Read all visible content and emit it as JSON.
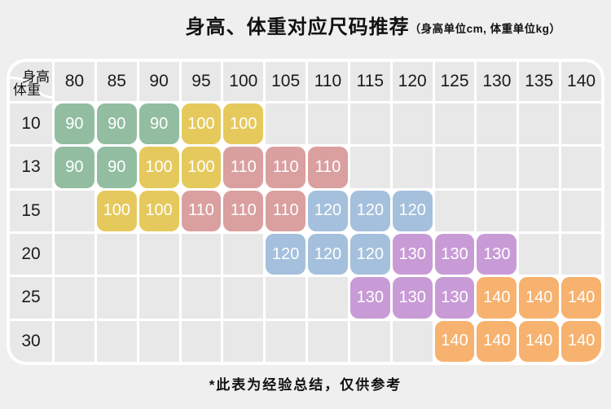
{
  "page": {
    "title": "身高、体重对应尺码推荐",
    "title_note": "（身高单位cm, 体重单位kg）",
    "footnote": "*此表为经验总结，仅供参考"
  },
  "chart_data": {
    "type": "table",
    "title": "身高、体重对应尺码推荐",
    "unit_note": "身高单位cm, 体重单位kg",
    "corner": {
      "top_right": "身高",
      "bottom_left": "体重"
    },
    "height_columns_cm": [
      "80",
      "85",
      "90",
      "95",
      "100",
      "105",
      "110",
      "115",
      "120",
      "125",
      "130",
      "135",
      "140"
    ],
    "rows": [
      {
        "weight_kg": "10",
        "sizes": [
          "90",
          "90",
          "90",
          "100",
          "100",
          "",
          "",
          "",
          "",
          "",
          "",
          "",
          ""
        ]
      },
      {
        "weight_kg": "13",
        "sizes": [
          "90",
          "90",
          "100",
          "100",
          "110",
          "110",
          "110",
          "",
          "",
          "",
          "",
          "",
          ""
        ]
      },
      {
        "weight_kg": "15",
        "sizes": [
          "",
          "100",
          "100",
          "110",
          "110",
          "110",
          "120",
          "120",
          "120",
          "",
          "",
          "",
          ""
        ]
      },
      {
        "weight_kg": "20",
        "sizes": [
          "",
          "",
          "",
          "",
          "",
          "120",
          "120",
          "120",
          "130",
          "130",
          "130",
          "",
          ""
        ]
      },
      {
        "weight_kg": "25",
        "sizes": [
          "",
          "",
          "",
          "",
          "",
          "",
          "",
          "130",
          "130",
          "130",
          "140",
          "140",
          "140"
        ]
      },
      {
        "weight_kg": "30",
        "sizes": [
          "",
          "",
          "",
          "",
          "",
          "",
          "",
          "",
          "",
          "140",
          "140",
          "140",
          "140"
        ]
      }
    ],
    "size_colors": {
      "90": "#92bda0",
      "100": "#e6c95c",
      "110": "#da9f9f",
      "120": "#a4c0dc",
      "130": "#c89bd6",
      "140": "#f6b26e"
    },
    "cell_bg": "#e8e8e8",
    "card_bg": "#ffffff",
    "page_bg": "#efefef"
  }
}
